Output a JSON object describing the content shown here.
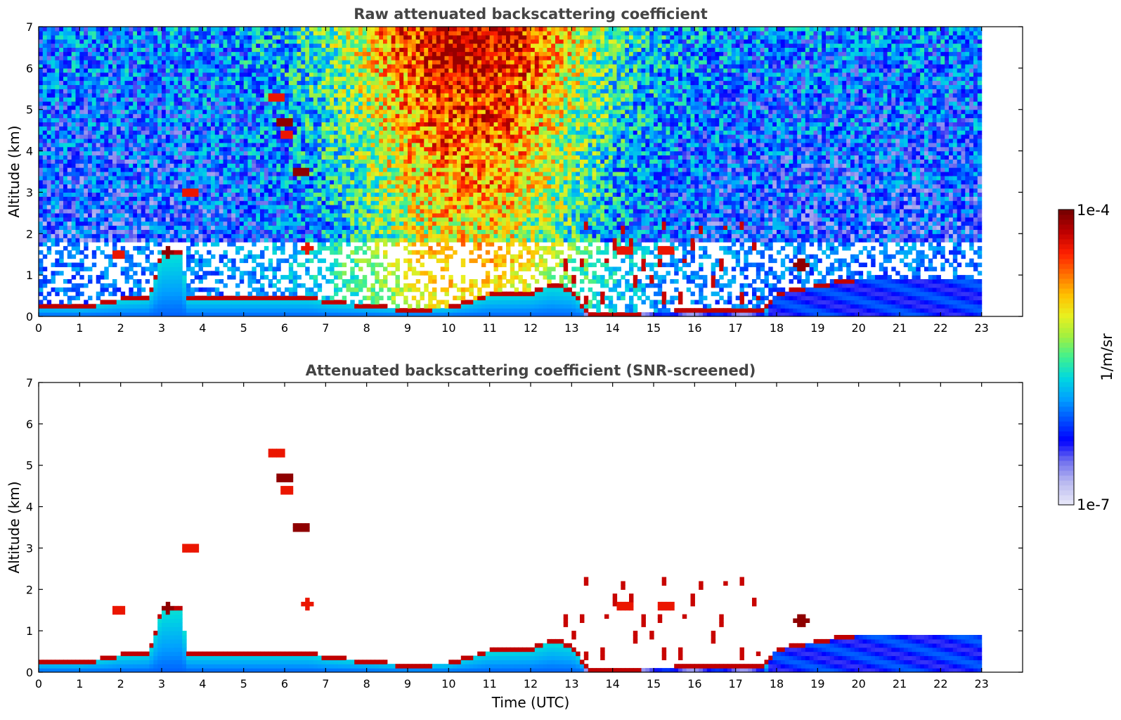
{
  "chart_data": [
    {
      "type": "heatmap",
      "title": "Raw attenuated backscattering coefficient",
      "xlabel": "",
      "ylabel": "Altitude (km)",
      "xlim": [
        0,
        24
      ],
      "ylim": [
        0,
        7
      ],
      "xticks": [
        "0",
        "1",
        "2",
        "3",
        "4",
        "5",
        "6",
        "7",
        "8",
        "9",
        "10",
        "11",
        "12",
        "13",
        "14",
        "15",
        "16",
        "17",
        "18",
        "19",
        "20",
        "21",
        "22",
        "23"
      ],
      "yticks": [
        "0",
        "1",
        "2",
        "3",
        "4",
        "5",
        "6",
        "7"
      ],
      "data_end_time": 23,
      "screened": false,
      "boundary_layer_top_km": [
        [
          0,
          0.3
        ],
        [
          1,
          0.28
        ],
        [
          1.5,
          0.35
        ],
        [
          2,
          0.45
        ],
        [
          2.7,
          0.5
        ],
        [
          3,
          1.55
        ],
        [
          3.5,
          1.6
        ],
        [
          3.6,
          0.5
        ],
        [
          4,
          0.5
        ],
        [
          6.6,
          0.5
        ],
        [
          7,
          0.4
        ],
        [
          8,
          0.3
        ],
        [
          9,
          0.2
        ],
        [
          10,
          0.25
        ],
        [
          11,
          0.55
        ],
        [
          12,
          0.6
        ],
        [
          12.5,
          0.8
        ],
        [
          13,
          0.7
        ],
        [
          13.4,
          0.1
        ],
        [
          17.7,
          0.2
        ],
        [
          18,
          0.6
        ],
        [
          20,
          0.95
        ],
        [
          23,
          0.95
        ]
      ],
      "cloud_features": [
        {
          "t": 1.95,
          "z": 1.5,
          "level": "high"
        },
        {
          "t": 3.15,
          "z": 1.55,
          "level": "max"
        },
        {
          "t": 3.7,
          "z": 3.0,
          "level": "high"
        },
        {
          "t": 5.8,
          "z": 5.3,
          "level": "high"
        },
        {
          "t": 6.0,
          "z": 4.7,
          "level": "max"
        },
        {
          "t": 6.05,
          "z": 4.4,
          "level": "high"
        },
        {
          "t": 6.4,
          "z": 3.5,
          "level": "max"
        },
        {
          "t": 6.55,
          "z": 1.65,
          "level": "high"
        },
        {
          "t": 14.3,
          "z": 1.6,
          "level": "high"
        },
        {
          "t": 15.3,
          "z": 1.6,
          "level": "high"
        },
        {
          "t": 18.6,
          "z": 1.25,
          "level": "max"
        }
      ]
    },
    {
      "type": "heatmap",
      "title": "Attenuated backscattering coefficient (SNR-screened)",
      "xlabel": "Time (UTC)",
      "ylabel": "Altitude (km)",
      "xlim": [
        0,
        24
      ],
      "ylim": [
        0,
        7
      ],
      "xticks": [
        "0",
        "1",
        "2",
        "3",
        "4",
        "5",
        "6",
        "7",
        "8",
        "9",
        "10",
        "11",
        "12",
        "13",
        "14",
        "15",
        "16",
        "17",
        "18",
        "19",
        "20",
        "21",
        "22",
        "23"
      ],
      "yticks": [
        "0",
        "1",
        "2",
        "3",
        "4",
        "5",
        "6",
        "7"
      ],
      "data_end_time": 23,
      "screened": true
    }
  ],
  "colorbar": {
    "max_label": "1e-4",
    "min_label": "1e-7",
    "unit_label": "1/m/sr",
    "min_value": 1e-07,
    "max_value": 0.0001,
    "colors": [
      "#e4e4f8",
      "#b8b8f0",
      "#7070ee",
      "#0000ff",
      "#0050ff",
      "#00a0ff",
      "#00d8e0",
      "#40f090",
      "#a0f040",
      "#e8f020",
      "#ffc000",
      "#ff7000",
      "#ff2000",
      "#c00000",
      "#7a0000"
    ]
  }
}
